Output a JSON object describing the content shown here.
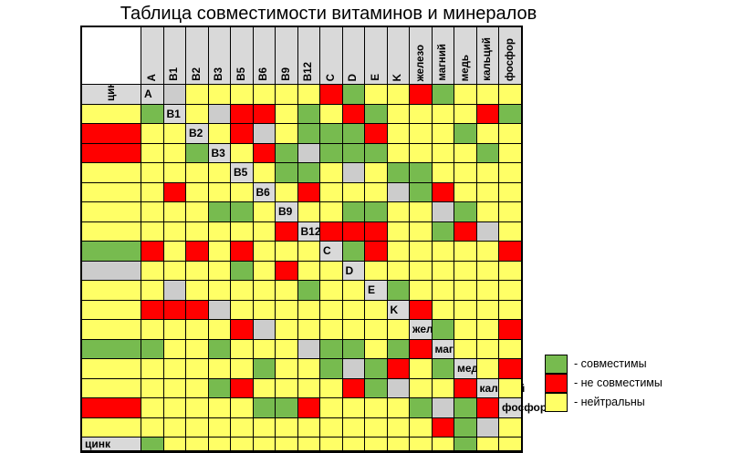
{
  "title": "Таблица совместимости витаминов и минералов",
  "colors": {
    "c": "#77bb4f",
    "n": "#ff0000",
    "y": "#ffff66",
    "e": "#cccccc",
    "header": "#d9d9d9"
  },
  "legend": [
    {
      "key": "c",
      "label": "- совместимы"
    },
    {
      "key": "n",
      "label": "- не совместимы"
    },
    {
      "key": "y",
      "label": "- нейтральны"
    }
  ],
  "chart_data": {
    "type": "heatmap",
    "title": "Таблица совместимости витаминов и минералов",
    "columns": [
      "A",
      "B1",
      "B2",
      "B3",
      "B5",
      "B6",
      "B9",
      "B12",
      "C",
      "D",
      "E",
      "K",
      "железо",
      "магний",
      "медь",
      "кальций",
      "фосфор",
      "цинк"
    ],
    "rows": [
      "A",
      "B1",
      "B2",
      "B3",
      "B5",
      "B6",
      "B9",
      "B12",
      "C",
      "D",
      "E",
      "K",
      "железо",
      "магний",
      "медь",
      "кальций",
      "фосфор",
      "цинк"
    ],
    "legend": {
      "c": "- совместимы",
      "n": "- не совместимы",
      "y": "- нейтральны"
    },
    "matrix": [
      "eyyyyyyncyyncyyyyc",
      "yennycyncyyyyncnyy",
      "yneycccnyyycyynyyc",
      "yncecccyyyycyyyyyy",
      "yccyeyccyyyyyynyyy",
      "ynyyyecnyyyyyyyccy",
      "yyccyyecyyyyyyyyyn",
      "nnnyycneycnynynyyy",
      "cnyyyyyneyyyycynyy",
      "yyyyyyyyyeyyyyycyy",
      "cyyyyyynnneyyyyyyy",
      "nyyyyyyyyyneyyyyyy",
      "cyynccyycyyyeccycn",
      "yyyyyyyyycyycecnyc",
      "ynyyyycnyyyynceyyn",
      "ynyyyyyccnyyyycecn",
      "yyyyyyyyyyyyyyncey",
      "cyyyyyyyyyyyyycyye"
    ]
  }
}
